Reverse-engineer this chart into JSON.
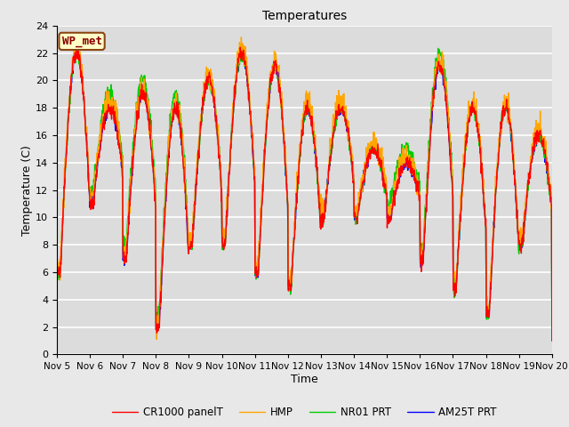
{
  "title": "Temperatures",
  "xlabel": "Time",
  "ylabel": "Temperature (C)",
  "legend_label": "WP_met",
  "series_labels": [
    "CR1000 panelT",
    "HMP",
    "NR01 PRT",
    "AM25T PRT"
  ],
  "series_colors": [
    "#ff0000",
    "#ffa500",
    "#00cc00",
    "#0000ff"
  ],
  "ylim": [
    0,
    24
  ],
  "xlim_days": 15,
  "x_tick_labels": [
    "Nov 5",
    "Nov 6",
    "Nov 7",
    "Nov 8",
    "Nov 9",
    "Nov 10",
    "Nov 11",
    "Nov 12",
    "Nov 13",
    "Nov 14",
    "Nov 15",
    "Nov 16",
    "Nov 17",
    "Nov 18",
    "Nov 19",
    "Nov 20"
  ],
  "background_color": "#e8e8e8",
  "plot_bg_color": "#dcdcdc",
  "grid_color": "#ffffff",
  "y_ticks": [
    0,
    2,
    4,
    6,
    8,
    10,
    12,
    14,
    16,
    18,
    20,
    22,
    24
  ],
  "linewidth": 1.0,
  "fig_width": 6.4,
  "fig_height": 4.8,
  "dpi": 100
}
